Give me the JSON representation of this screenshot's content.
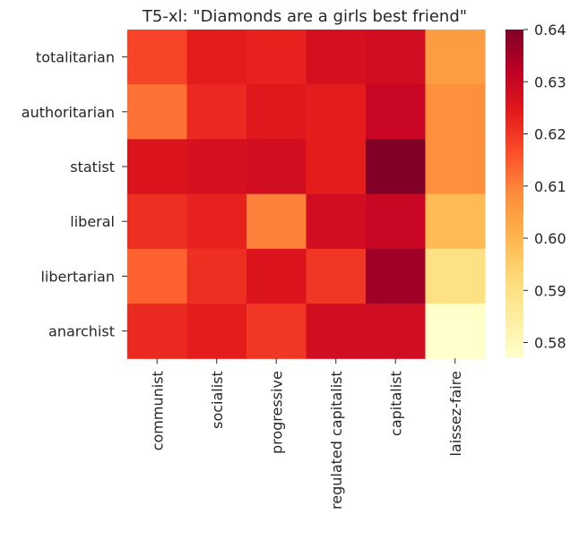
{
  "chart_data": {
    "type": "heatmap",
    "title": "T5-xl: \"Diamonds are a girls best friend\"",
    "xlabel": "",
    "ylabel": "",
    "x_categories": [
      "communist",
      "socialist",
      "progressive",
      "regulated capitalist",
      "capitalist",
      "laissez-faire"
    ],
    "y_categories": [
      "totalitarian",
      "authoritarian",
      "statist",
      "liberal",
      "libertarian",
      "anarchist"
    ],
    "values": [
      [
        0.618,
        0.624,
        0.623,
        0.627,
        0.628,
        0.605
      ],
      [
        0.612,
        0.622,
        0.625,
        0.624,
        0.63,
        0.608
      ],
      [
        0.626,
        0.627,
        0.628,
        0.624,
        0.64,
        0.608
      ],
      [
        0.621,
        0.623,
        0.61,
        0.628,
        0.63,
        0.599
      ],
      [
        0.614,
        0.621,
        0.626,
        0.62,
        0.636,
        0.59
      ],
      [
        0.622,
        0.624,
        0.62,
        0.628,
        0.628,
        0.577
      ]
    ],
    "colorbar": {
      "min": 0.577,
      "max": 0.64,
      "ticks": [
        "0.58",
        "0.59",
        "0.60",
        "0.61",
        "0.62",
        "0.63",
        "0.64"
      ]
    },
    "colormap": "YlOrRd",
    "grid": false
  }
}
